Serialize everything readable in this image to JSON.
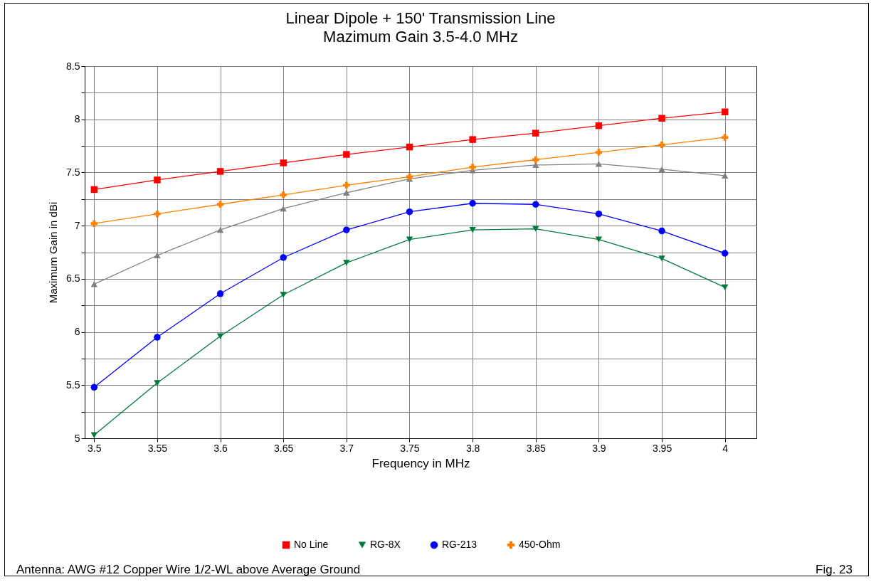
{
  "chart_data": {
    "type": "line",
    "title": "Linear Dipole + 150' Transmission Line",
    "subtitle": "Mazimum Gain 3.5-4.0 MHz",
    "xlabel": "Frequency in MHz",
    "ylabel": "Maximum Gain in dBi",
    "x": [
      3.5,
      3.55,
      3.6,
      3.65,
      3.7,
      3.75,
      3.8,
      3.85,
      3.9,
      3.95,
      4
    ],
    "series": [
      {
        "name": "No Line",
        "color": "#ff0000",
        "marker": "square",
        "values": [
          7.34,
          7.43,
          7.51,
          7.59,
          7.67,
          7.74,
          7.81,
          7.87,
          7.94,
          8.01,
          8.07
        ]
      },
      {
        "name": "RG-8X",
        "color": "#007a3d",
        "marker": "triangle-down",
        "values": [
          5.03,
          5.52,
          5.96,
          6.35,
          6.65,
          6.87,
          6.96,
          6.97,
          6.87,
          6.69,
          6.42
        ]
      },
      {
        "name": "RG-213",
        "color": "#0000ff",
        "marker": "circle",
        "values": [
          5.48,
          5.95,
          6.36,
          6.7,
          6.96,
          7.13,
          7.21,
          7.2,
          7.11,
          6.95,
          6.74
        ]
      },
      {
        "color": "#808080",
        "marker": "triangle",
        "values": [
          6.45,
          6.72,
          6.96,
          7.16,
          7.31,
          7.44,
          7.52,
          7.57,
          7.58,
          7.53,
          7.47
        ]
      },
      {
        "name": "450-Ohm",
        "color": "#ff8000",
        "marker": "cross",
        "values": [
          7.02,
          7.11,
          7.2,
          7.29,
          7.38,
          7.46,
          7.55,
          7.62,
          7.69,
          7.76,
          7.83
        ]
      }
    ],
    "xlim": [
      3.4925,
      4.025
    ],
    "xticks": [
      3.5,
      3.55,
      3.6,
      3.65,
      3.7,
      3.75,
      3.8,
      3.85,
      3.9,
      3.95,
      4
    ],
    "ylim": [
      5,
      8.5
    ],
    "yticks": [
      5,
      {
        "value": 5.25,
        "label": null
      },
      5.5,
      {
        "value": 5.75,
        "label": null
      },
      6,
      {
        "value": 6.25,
        "label": null
      },
      6.5,
      {
        "value": 6.75,
        "label": null
      },
      7,
      {
        "value": 7.25,
        "label": null
      },
      7.5,
      {
        "value": 7.75,
        "label": null
      },
      8,
      {
        "value": 8.25,
        "label": null
      },
      8.5
    ],
    "grid": true,
    "legend": "bottom",
    "line_style": "solid",
    "annotations": [
      "Antenna: AWG #12 Copper Wire 1/2-WL above Average Ground",
      "Fig. 23"
    ]
  }
}
